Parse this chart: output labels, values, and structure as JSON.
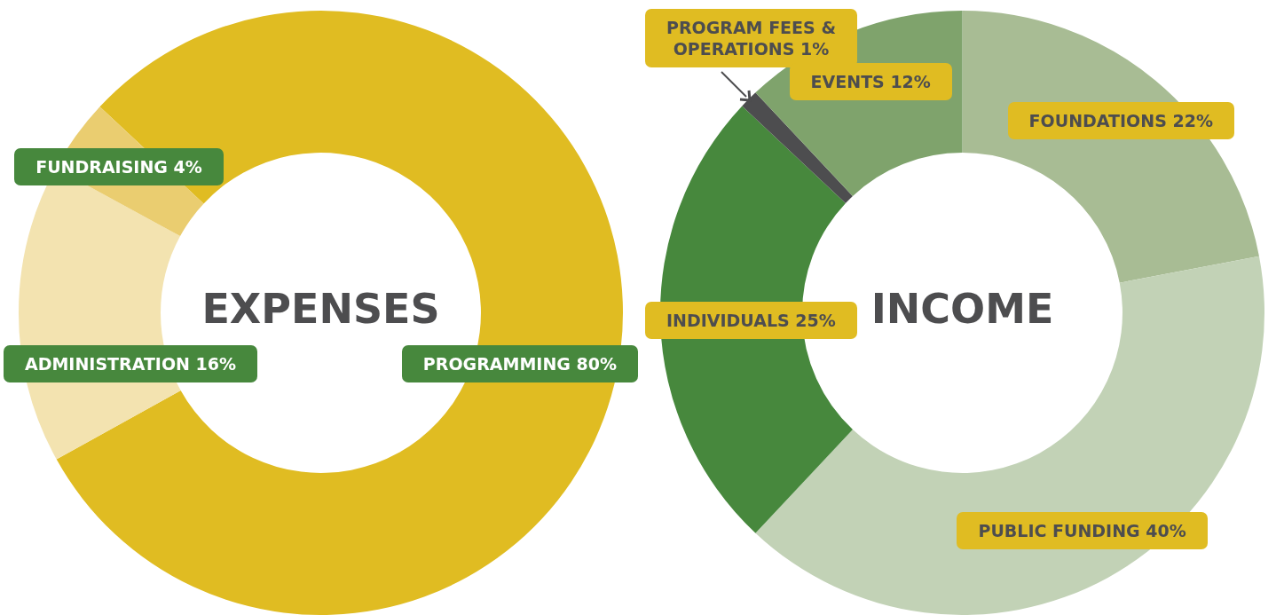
{
  "chart_data": [
    {
      "type": "donut",
      "title": "EXPENSES",
      "categories": [
        "PROGRAMMING",
        "ADMINISTRATION",
        "FUNDRAISING"
      ],
      "values": [
        80,
        16,
        4
      ],
      "value_labels": [
        "80%",
        "16%",
        "4%"
      ],
      "colors": [
        "#e0bc22",
        "#f3e3b0",
        "#eacd70"
      ],
      "legend": false
    },
    {
      "type": "donut",
      "title": "INCOME",
      "categories": [
        "FOUNDATIONS",
        "PUBLIC FUNDING",
        "INDIVIDUALS",
        "PROGRAM FEES & OPERATIONS",
        "EVENTS"
      ],
      "values": [
        22,
        40,
        25,
        1,
        12
      ],
      "value_labels": [
        "22%",
        "40%",
        "25%",
        "1%",
        "12%"
      ],
      "colors": [
        "#a8bc94",
        "#c2d2b6",
        "#47883d",
        "#4d4d4f",
        "#7fa36c"
      ],
      "legend": false
    }
  ]
}
